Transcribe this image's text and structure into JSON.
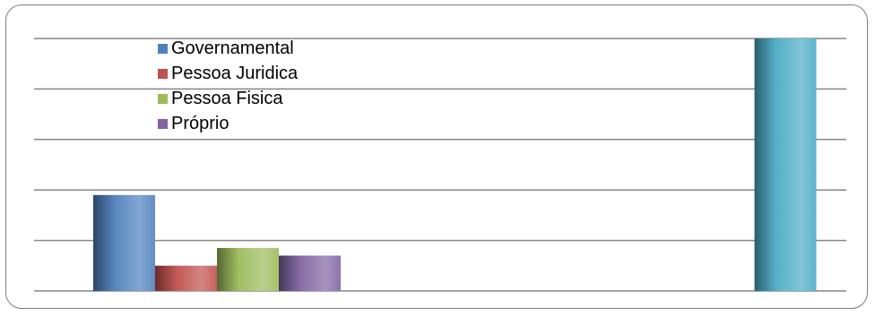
{
  "chart_data": {
    "type": "bar",
    "title": "",
    "xlabel": "",
    "ylabel": "",
    "ylim": [
      0,
      5
    ],
    "grid": true,
    "legend_position": "top-left",
    "gridline_values": [
      0,
      1,
      2,
      3,
      4,
      5
    ],
    "series": [
      {
        "name": "Governamental",
        "color": "#4f81bd",
        "values": [
          1.9,
          0
        ]
      },
      {
        "name": "Pessoa Juridica",
        "color": "#c0504d",
        "values": [
          0.5,
          0
        ]
      },
      {
        "name": "Pessoa Fisica",
        "color": "#9bbb59",
        "values": [
          0.85,
          0
        ]
      },
      {
        "name": "Próprio",
        "color": "#8064a2",
        "values": [
          0.7,
          0
        ]
      },
      {
        "color": "#4bacc6",
        "values": [
          0,
          5
        ]
      }
    ],
    "categories": [
      "",
      ""
    ]
  },
  "legend": {
    "items": [
      {
        "label": "Governamental",
        "color": "#4f81bd"
      },
      {
        "label": "Pessoa Juridica",
        "color": "#c0504d"
      },
      {
        "label": "Pessoa Fisica",
        "color": "#9bbb59"
      },
      {
        "label": "Próprio",
        "color": "#8064a2"
      }
    ]
  }
}
